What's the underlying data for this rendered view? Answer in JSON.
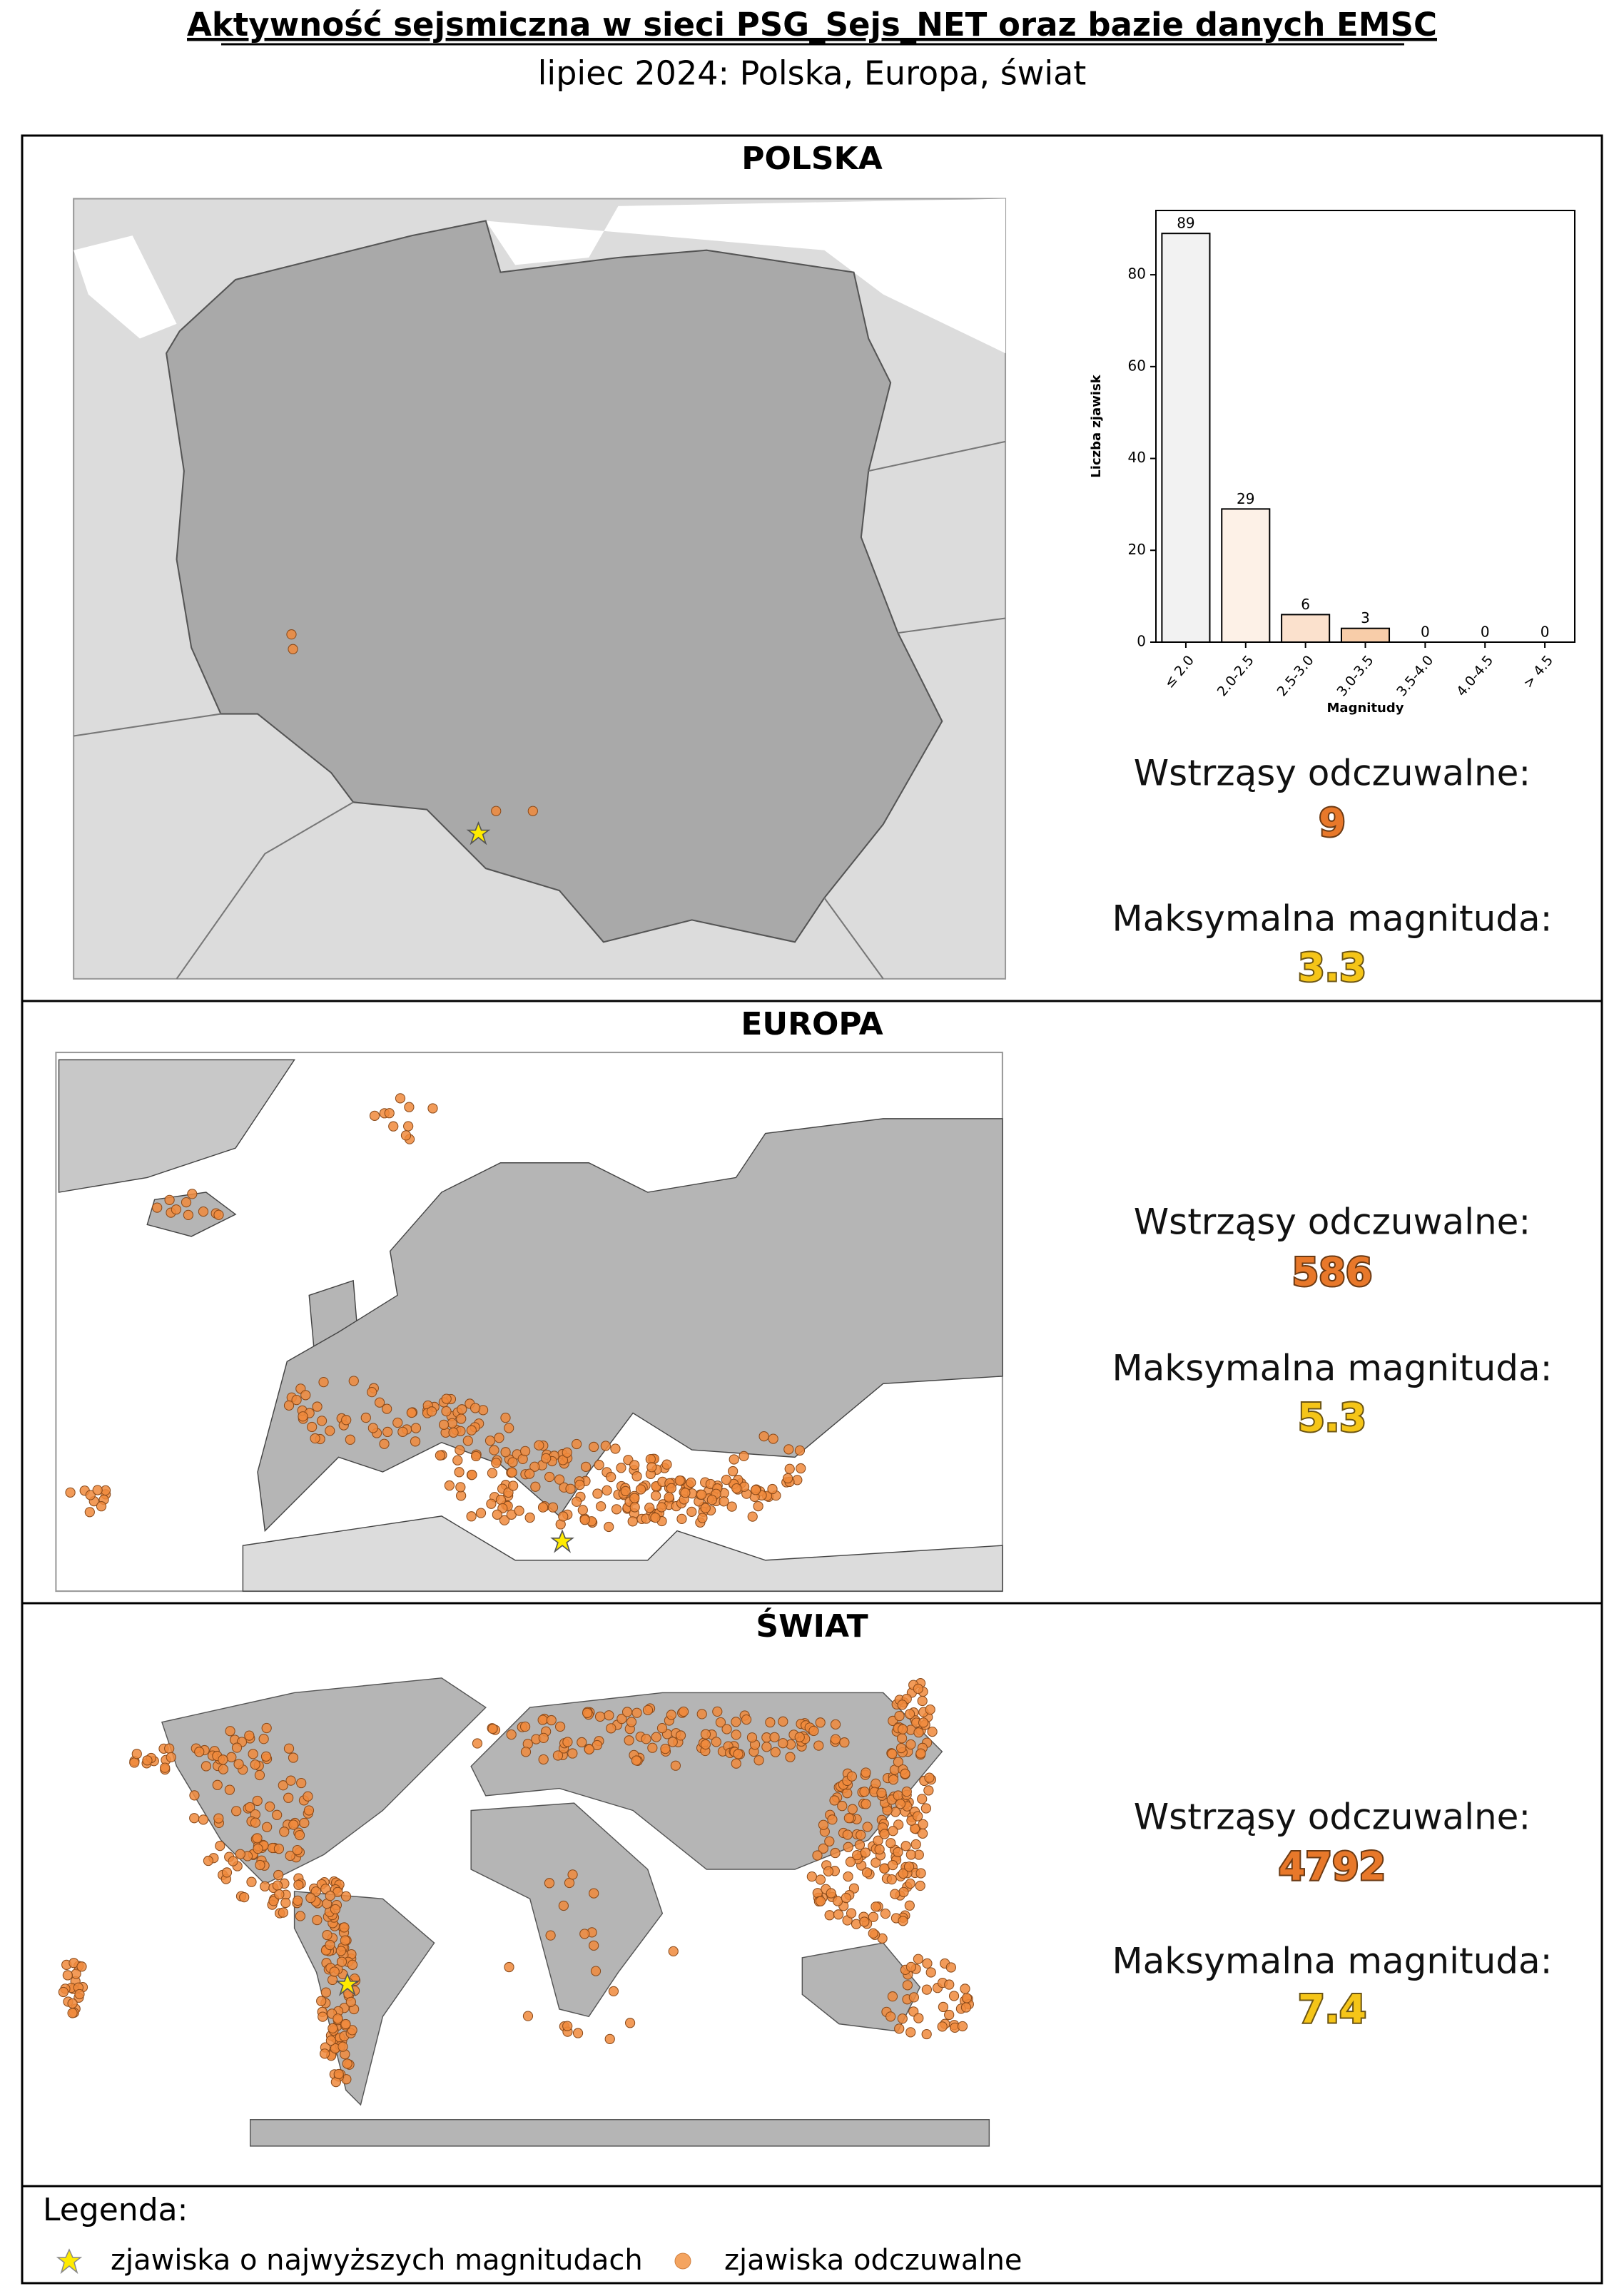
{
  "header": {
    "title": "Aktywność sejsmiczna w sieci PSG_Sejs_NET oraz bazie danych EMSC",
    "subtitle": "lipiec 2024: Polska, Europa, świat"
  },
  "sections": [
    {
      "heading": "POLSKA",
      "felt_label": "Wstrząsy odczuwalne:",
      "felt": 9,
      "max_label": "Maksymalna magnituda:",
      "max": 3.3
    },
    {
      "heading": "EUROPA",
      "felt_label": "Wstrząsy odczuwalne:",
      "felt": 586,
      "max_label": "Maksymalna magnituda:",
      "max": 5.3
    },
    {
      "heading": "ŚWIAT",
      "felt_label": "Wstrząsy odczuwalne:",
      "felt": 4792,
      "max_label": "Maksymalna magnituda:",
      "max": 7.4
    }
  ],
  "legend": {
    "title": "Legenda:",
    "items": [
      "zjawiska o najwyższych magnitudach",
      "zjawiska odczuwalne"
    ]
  },
  "chart_data": {
    "type": "bar",
    "x_label": "Magnitudy",
    "y_label": "Liczba zjawisk",
    "categories": [
      "≤ 2.0",
      "2.0-2.5",
      "2.5-3.0",
      "3.0-3.5",
      "3.5-4.0",
      "4.0-4.5",
      "> 4.5"
    ],
    "values": [
      89,
      29,
      6,
      3,
      0,
      0,
      0
    ],
    "colors": [
      "#f2f2f2",
      "#fdf1e7",
      "#fbe1cd",
      "#f8cda9",
      "#f5b887",
      "#f2a466",
      "#ee8f45"
    ],
    "ylim": [
      0,
      94
    ],
    "yticks": [
      0,
      20,
      40,
      60,
      80
    ]
  }
}
